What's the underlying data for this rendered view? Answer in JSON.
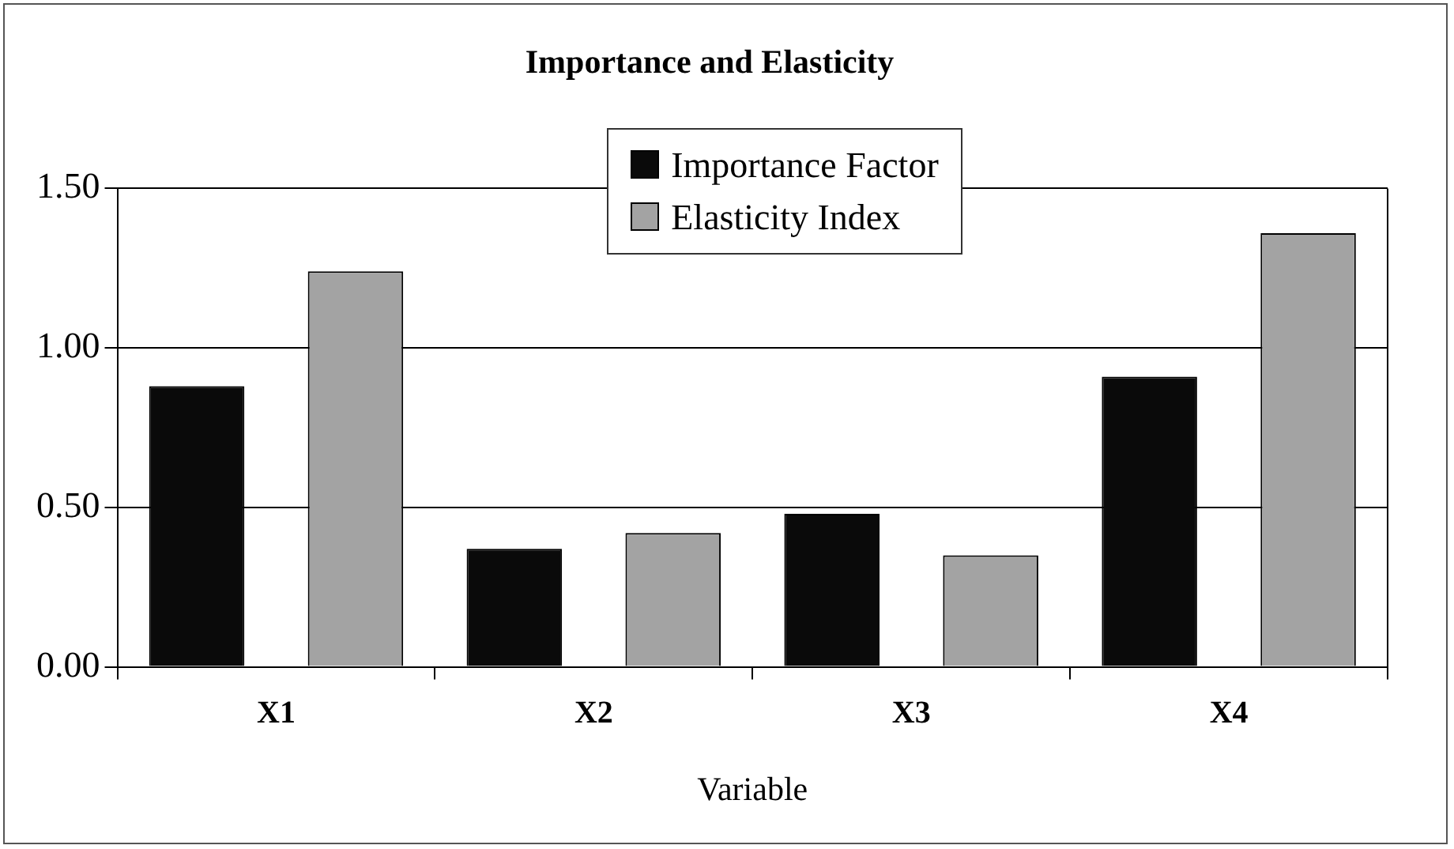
{
  "chart_data": {
    "type": "bar",
    "title": "Importance and Elasticity",
    "xlabel": "Variable",
    "categories": [
      "X1",
      "X2",
      "X3",
      "X4"
    ],
    "series": [
      {
        "name": "Importance Factor",
        "color": "#0a0a0a",
        "values": [
          0.88,
          0.37,
          0.48,
          0.91
        ]
      },
      {
        "name": "Elasticity Index",
        "color": "#a3a3a3",
        "values": [
          1.24,
          0.42,
          0.35,
          1.36
        ]
      }
    ],
    "ylim": [
      0,
      1.5
    ],
    "yticks": [
      {
        "value": 0,
        "label": "0.00"
      },
      {
        "value": 0.5,
        "label": "0.50"
      },
      {
        "value": 1,
        "label": "1.00"
      },
      {
        "value": 1.5,
        "label": "1.50"
      }
    ],
    "grid": "y",
    "legend": "top"
  }
}
